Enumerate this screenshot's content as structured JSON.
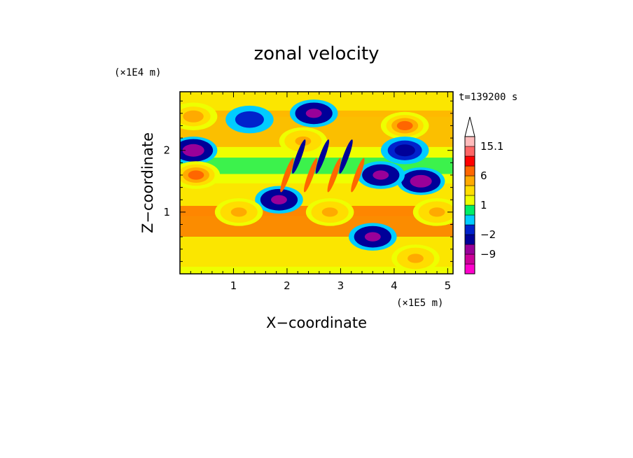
{
  "chart_data": {
    "type": "heatmap",
    "title": "zonal velocity",
    "xlabel": "X−coordinate",
    "ylabel": "Z−coordinate",
    "x_scale_label": "(×1E5 m)",
    "y_scale_label": "(×1E4 m)",
    "time_label": "t=139200 s",
    "xlim": [
      0,
      5.1
    ],
    "ylim": [
      0,
      2.95
    ],
    "x_ticks": [
      "1",
      "2",
      "3",
      "4",
      "5"
    ],
    "x_tick_values": [
      1,
      2,
      3,
      4,
      5
    ],
    "y_ticks": [
      "1",
      "2"
    ],
    "y_tick_values": [
      1,
      2
    ],
    "colorbar": {
      "labels": [
        "15.1",
        "6",
        "1",
        "−2",
        "−9"
      ],
      "label_values": [
        15.1,
        6,
        1,
        -2,
        -9
      ],
      "levels": [
        -15,
        -12,
        -9,
        -6,
        -2,
        -1,
        0,
        1,
        2,
        4,
        6,
        9,
        12,
        15.1
      ],
      "colors": [
        "#ff00cc",
        "#cc0099",
        "#990099",
        "#000099",
        "#0022cc",
        "#00ccff",
        "#00ee66",
        "#eeff00",
        "#ffdd00",
        "#ffaa00",
        "#ff6600",
        "#ff0000",
        "#ff6666",
        "#ffbbbb"
      ],
      "overflow_arrow": true
    },
    "features": [
      {
        "x": 0.25,
        "z": 2.0,
        "value": -9
      },
      {
        "x": 4.5,
        "z": 1.5,
        "value": -9
      },
      {
        "x": 3.75,
        "z": 1.6,
        "value": -8
      },
      {
        "x": 3.6,
        "z": 0.6,
        "value": -8
      },
      {
        "x": 1.85,
        "z": 1.2,
        "value": -8
      },
      {
        "x": 4.2,
        "z": 2.4,
        "value": 8
      },
      {
        "x": 0.3,
        "z": 1.6,
        "value": 7
      },
      {
        "x": 0.25,
        "z": 2.55,
        "value": 6
      },
      {
        "x": 4.8,
        "z": 1.0,
        "value": 4
      },
      {
        "x": 4.4,
        "z": 0.25,
        "value": 4
      },
      {
        "x": 1.3,
        "z": 2.5,
        "value": -2
      },
      {
        "x": 2.5,
        "z": 2.6,
        "value": -8
      },
      {
        "x": 4.2,
        "z": 2.0,
        "value": -3
      },
      {
        "x": 2.3,
        "z": 2.15,
        "value": 4
      },
      {
        "x": 1.1,
        "z": 1.0,
        "value": 4
      },
      {
        "x": 2.8,
        "z": 1.0,
        "value": 4
      }
    ]
  }
}
